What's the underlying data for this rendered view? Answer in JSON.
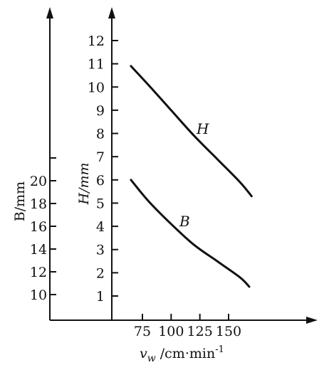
{
  "chart_data": {
    "type": "line",
    "x_axis": {
      "label_symbol": "v",
      "label_subscript": "w",
      "label_rest": " /cm·min",
      "label_superscript": "-1",
      "ticks": [
        75,
        100,
        125,
        150
      ],
      "tick_labels": [
        "75",
        "100",
        "125",
        "150"
      ]
    },
    "left_axis": {
      "label": "B/mm",
      "ticks": [
        10,
        12,
        14,
        16,
        18,
        20
      ],
      "tick_labels": [
        "10",
        "12",
        "14",
        "16",
        "18",
        "20"
      ]
    },
    "right_axis": {
      "label": "H/mm",
      "ticks": [
        1,
        2,
        3,
        4,
        5,
        6,
        7,
        8,
        9,
        10,
        11,
        12
      ],
      "tick_labels": [
        "1",
        "2",
        "3",
        "4",
        "5",
        "6",
        "7",
        "8",
        "9",
        "10",
        "11",
        "12"
      ]
    },
    "series": [
      {
        "name": "H",
        "axis": "right",
        "x": [
          65,
          80,
          100,
          120,
          140,
          160,
          170
        ],
        "y": [
          10.9,
          10.1,
          9.0,
          7.9,
          6.9,
          5.9,
          5.3
        ]
      },
      {
        "name": "B",
        "axis": "right",
        "x": [
          65,
          80,
          100,
          120,
          140,
          160,
          168
        ],
        "y": [
          6.0,
          5.1,
          4.1,
          3.2,
          2.5,
          1.8,
          1.4
        ]
      }
    ]
  }
}
